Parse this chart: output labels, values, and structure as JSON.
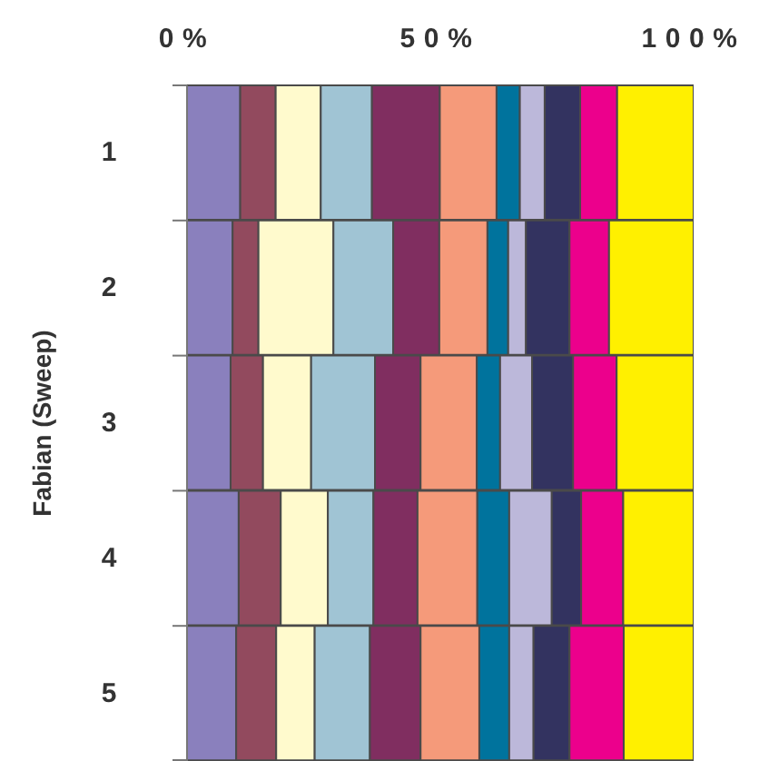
{
  "chart_data": {
    "type": "bar",
    "orientation": "horizontal",
    "stacked": true,
    "ylabel": "Fabian (Sweep)",
    "categories": [
      "1",
      "2",
      "3",
      "4",
      "5"
    ],
    "xlim": [
      0,
      100
    ],
    "xticks": [
      {
        "value": 0,
        "label": "0%"
      },
      {
        "value": 50,
        "label": "50%"
      },
      {
        "value": 100,
        "label": "100%"
      }
    ],
    "series": [
      {
        "color": "#8a80bd",
        "values": [
          10.5,
          9.0,
          8.6,
          10.2,
          9.7
        ]
      },
      {
        "color": "#924a5e",
        "values": [
          7.0,
          5.1,
          6.4,
          8.3,
          7.9
        ]
      },
      {
        "color": "#fffacd",
        "values": [
          8.9,
          14.8,
          9.5,
          9.3,
          7.6
        ]
      },
      {
        "color": "#a0c4d4",
        "values": [
          10.1,
          11.8,
          12.6,
          9.0,
          10.9
        ]
      },
      {
        "color": "#802e60",
        "values": [
          13.4,
          9.1,
          9.0,
          8.7,
          10.0
        ]
      },
      {
        "color": "#f59a7a",
        "values": [
          11.2,
          9.5,
          11.1,
          11.8,
          11.6
        ]
      },
      {
        "color": "#00739d",
        "values": [
          4.6,
          4.1,
          4.6,
          6.3,
          5.9
        ]
      },
      {
        "color": "#bcb8da",
        "values": [
          4.9,
          3.5,
          6.3,
          8.4,
          4.8
        ]
      },
      {
        "color": "#333360",
        "values": [
          7.0,
          8.6,
          8.1,
          5.8,
          7.1
        ]
      },
      {
        "color": "#ec008c",
        "values": [
          7.3,
          7.8,
          8.6,
          8.3,
          10.7
        ]
      },
      {
        "color": "#fff000",
        "values": [
          15.1,
          16.7,
          15.2,
          13.9,
          13.8
        ]
      }
    ]
  }
}
